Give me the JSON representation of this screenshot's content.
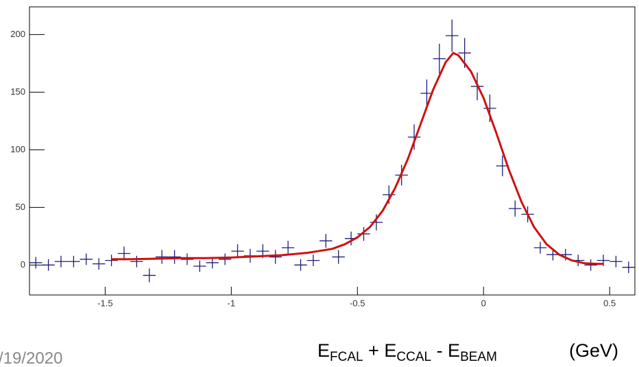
{
  "chart_data": {
    "type": "errorbar",
    "x": [
      -1.775,
      -1.725,
      -1.675,
      -1.625,
      -1.575,
      -1.525,
      -1.475,
      -1.425,
      -1.375,
      -1.325,
      -1.275,
      -1.225,
      -1.175,
      -1.125,
      -1.075,
      -1.025,
      -0.975,
      -0.925,
      -0.875,
      -0.825,
      -0.775,
      -0.725,
      -0.675,
      -0.625,
      -0.575,
      -0.525,
      -0.475,
      -0.425,
      -0.375,
      -0.325,
      -0.275,
      -0.225,
      -0.175,
      -0.125,
      -0.075,
      -0.025,
      0.025,
      0.075,
      0.125,
      0.175,
      0.225,
      0.275,
      0.325,
      0.375,
      0.425,
      0.475,
      0.525,
      0.575
    ],
    "series": [
      {
        "color": "#1c1c78",
        "values": [
          2,
          0,
          3,
          3,
          5,
          1,
          4,
          10,
          3,
          -9,
          7,
          7,
          5,
          -1,
          2,
          5,
          12,
          8,
          12,
          7,
          15,
          0,
          4,
          21,
          7,
          23,
          27,
          37,
          61,
          78,
          111,
          149,
          179,
          199,
          184,
          155,
          136,
          86,
          49,
          44,
          15,
          9,
          9,
          4,
          0,
          4,
          3,
          -2
        ],
        "errors": [
          5,
          5,
          5,
          5,
          5,
          5,
          5,
          6,
          5,
          6,
          6,
          6,
          5,
          5,
          5,
          5,
          6,
          6,
          6,
          6,
          6,
          5,
          5,
          6,
          6,
          6,
          6,
          7,
          8,
          9,
          11,
          12,
          13,
          14,
          13,
          12,
          12,
          9,
          7,
          7,
          5,
          5,
          5,
          5,
          5,
          5,
          5,
          5
        ]
      }
    ],
    "fit": {
      "color": "#d01010",
      "x": [
        -1.475,
        -1.4,
        -1.3,
        -1.2,
        -1.1,
        -1.0,
        -0.9,
        -0.8,
        -0.7,
        -0.6,
        -0.55,
        -0.5,
        -0.45,
        -0.4,
        -0.35,
        -0.3,
        -0.25,
        -0.2,
        -0.15,
        -0.12,
        -0.1,
        -0.05,
        0,
        0.05,
        0.1,
        0.15,
        0.2,
        0.25,
        0.3,
        0.35,
        0.4,
        0.45,
        0.475
      ],
      "values": [
        5,
        5,
        5.5,
        6,
        6,
        6.5,
        7.5,
        8.5,
        10.5,
        14,
        18,
        24,
        33,
        47,
        67,
        92,
        122,
        152,
        176,
        184,
        182,
        168,
        145,
        115,
        83,
        55,
        33,
        18,
        9,
        4,
        1.5,
        1,
        1
      ]
    },
    "xlim": [
      -1.8,
      0.6
    ],
    "ylim": [
      -26,
      224
    ],
    "xticks": [
      -1.5,
      -1,
      -0.5,
      0,
      0.5
    ],
    "yticks": [
      0,
      50,
      100,
      150,
      200
    ],
    "xlabel_parts": [
      "E",
      "FCAL",
      " + E",
      "CCAL",
      " - E",
      "BEAM",
      "(GeV)"
    ],
    "footer": "/19/2020"
  }
}
